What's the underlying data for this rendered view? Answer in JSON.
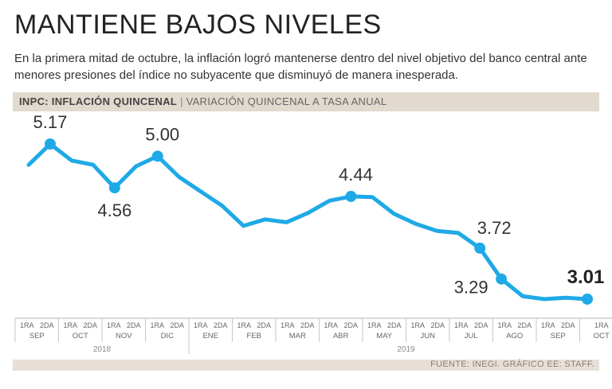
{
  "header": {
    "title": "MANTIENE BAJOS NIVELES",
    "subtitle": "En la primera mitad de octubre, la inflación logró mantenerse dentro del nivel objetivo del banco central ante menores presiones del índice no subyacente que disminuyó de manera inesperada."
  },
  "band": {
    "strong": "INPC: INFLACIÓN QUINCENAL",
    "separator": "|",
    "light": "VARIACIÓN QUINCENAL A TASA ANUAL"
  },
  "footer": {
    "source": "FUENTE: INEGI. GRÁFICO EE: STAFF."
  },
  "colors": {
    "line": "#1fa9e6",
    "band": "#e2d9cf",
    "text": "#333333"
  },
  "chart_data": {
    "type": "line",
    "title": "INPC: INFLACIÓN QUINCENAL",
    "ylabel": "Variación quincenal a tasa anual (%)",
    "ylim": [
      2.8,
      5.4
    ],
    "grid": false,
    "x": [
      "1RA SEP",
      "2DA SEP",
      "1RA OCT",
      "2DA OCT",
      "1RA NOV",
      "2DA NOV",
      "1RA DIC",
      "2DA DIC",
      "1RA ENE",
      "2DA ENE",
      "1RA FEB",
      "2DA FEB",
      "1RA MAR",
      "2DA MAR",
      "1RA ABR",
      "2DA ABR",
      "1RA MAY",
      "2DA MAY",
      "1RA JUN",
      "2DA JUN",
      "1RA JUL",
      "2DA JUL",
      "1RA AGO",
      "2DA AGO",
      "1RA SEP",
      "2DA SEP",
      "1RA OCT"
    ],
    "values": [
      4.88,
      5.17,
      4.94,
      4.88,
      4.56,
      4.86,
      5.0,
      4.71,
      4.51,
      4.31,
      4.03,
      4.12,
      4.08,
      4.21,
      4.38,
      4.44,
      4.43,
      4.2,
      4.06,
      3.96,
      3.93,
      3.72,
      3.29,
      3.05,
      3.01,
      3.03,
      3.01
    ],
    "labels": [
      {
        "index": 1,
        "text": "5.17",
        "marker": true,
        "bold": false
      },
      {
        "index": 4,
        "text": "4.56",
        "marker": true,
        "bold": false
      },
      {
        "index": 6,
        "text": "5.00",
        "marker": true,
        "bold": false
      },
      {
        "index": 15,
        "text": "4.44",
        "marker": true,
        "bold": false
      },
      {
        "index": 21,
        "text": "3.72",
        "marker": true,
        "bold": false
      },
      {
        "index": 22,
        "text": "3.29",
        "marker": true,
        "bold": false
      },
      {
        "index": 26,
        "text": "3.01",
        "marker": true,
        "bold": true
      }
    ],
    "months": [
      "SEP",
      "OCT",
      "NOV",
      "DIC",
      "ENE",
      "FEB",
      "MAR",
      "ABR",
      "MAY",
      "JUN",
      "JUL",
      "AGO",
      "SEP",
      "OCT"
    ],
    "halves": [
      "1RA",
      "2DA"
    ],
    "years": [
      "2018",
      "2019"
    ]
  }
}
